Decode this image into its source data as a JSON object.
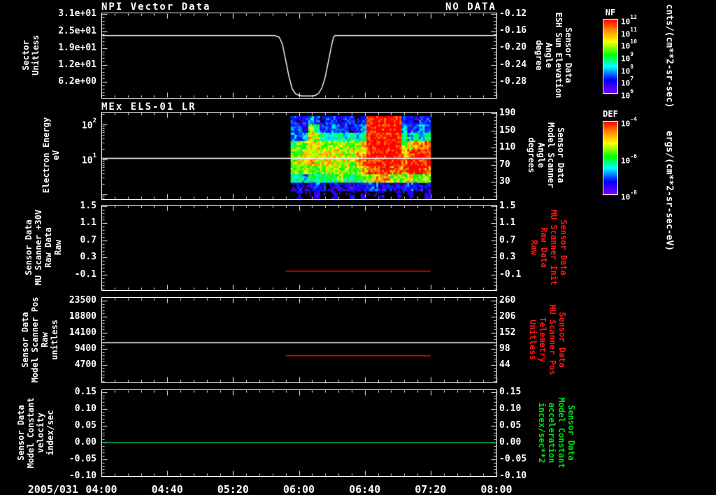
{
  "time_axis": {
    "date": "2005/031",
    "labels": [
      "04:00",
      "04:40",
      "05:20",
      "06:00",
      "06:40",
      "07:20",
      "08:00"
    ],
    "tick_minutes": [
      0,
      40,
      80,
      120,
      160,
      200,
      240
    ],
    "minor_step_min": 8,
    "t0_min": 0,
    "t1_min": 240
  },
  "colorbars": {
    "nf": {
      "label": "NF",
      "unit": "cnts/(cm**2-sr-sec)",
      "tick_exponents": [
        12,
        11,
        10,
        9,
        8,
        7,
        6
      ]
    },
    "def": {
      "label": "DEF",
      "unit": "ergs/(cm**2-sr-sec-eV)",
      "tick_exponents": [
        -4,
        -6,
        -8
      ]
    }
  },
  "chart_data": [
    {
      "panel": 1,
      "type": "line",
      "title": "NPI Vector Data",
      "status": "NO DATA",
      "left_axis": {
        "label": "Sector\nUnitless",
        "tick_labels": [
          "3.1e+01",
          "2.5e+01",
          "1.9e+01",
          "1.2e+01",
          "6.2e+00"
        ],
        "tick_values": [
          31.0,
          24.8,
          18.6,
          12.4,
          6.2
        ],
        "range": [
          0.3,
          31.6
        ]
      },
      "right_axis": {
        "label": "Sensor Data\nESH Sun Elevation\nAngle\ndegree",
        "tick_labels": [
          "-0.12",
          "-0.16",
          "-0.20",
          "-0.24",
          "-0.28"
        ],
        "tick_values": [
          -0.12,
          -0.16,
          -0.2,
          -0.24,
          -0.28
        ],
        "range": [
          -0.318,
          -0.1167
        ]
      },
      "series": [
        {
          "name": "sector",
          "color": "#ffffff",
          "points": [
            [
              0,
              23.2
            ],
            [
              105,
              23.2
            ],
            [
              108,
              22.6
            ],
            [
              110,
              20
            ],
            [
              112,
              14
            ],
            [
              114,
              8
            ],
            [
              116,
              3.5
            ],
            [
              118,
              1.8
            ],
            [
              120,
              1.2
            ],
            [
              122,
              1.0
            ],
            [
              128,
              1.0
            ],
            [
              130,
              1.2
            ],
            [
              132,
              2.0
            ],
            [
              134,
              4.0
            ],
            [
              136,
              8.0
            ],
            [
              138,
              14.0
            ],
            [
              140,
              20.0
            ],
            [
              141,
              22.5
            ],
            [
              142,
              23.2
            ],
            [
              240,
              23.2
            ]
          ]
        }
      ]
    },
    {
      "panel": 2,
      "type": "heatmap",
      "title": "MEx ELS-01 LR",
      "left_axis": {
        "label": "Electron Energy\neV",
        "log": true,
        "tick_exponents": [
          2,
          1
        ],
        "exp_range": [
          -0.14,
          2.36
        ]
      },
      "right_axis": {
        "label": "Sensor Data\nModel Scanner\nAngle\ndegrees",
        "tick_labels": [
          "190",
          "150",
          "110",
          "70",
          "30"
        ],
        "tick_values": [
          190,
          150,
          110,
          70,
          30
        ],
        "range": [
          -10.8,
          193.3
        ]
      },
      "overlay_line": {
        "name": "energy-marker",
        "color": "#ffffff",
        "energy_eV": 11
      },
      "heatmap": {
        "t_start_min": 115,
        "t_end_min": 200,
        "energy_rows": "high-to-low",
        "flux_scale_exp_range": [
          -8,
          -4
        ],
        "log10_flux_grid": [
          [
            -7.2,
            -7.7,
            -7.2,
            -6.6,
            -7.2,
            -7.7,
            -7.2,
            -7.2,
            -7.7,
            -7.2,
            -7.2,
            -7.7,
            -7.2,
            -4,
            -4,
            -4,
            -4,
            -4,
            -4,
            -7.2,
            -7.2,
            -7.7,
            -7.2,
            -7.2
          ],
          [
            -7.2,
            -7.2,
            -7.7,
            -5.4,
            -6,
            -7.2,
            -7.2,
            -6.6,
            -7.2,
            -7.2,
            -7.7,
            -7.2,
            -6.6,
            -4,
            -4,
            -4,
            -4,
            -4,
            -4,
            -6.6,
            -7.2,
            -7.2,
            -6.6,
            -7.2
          ],
          [
            -6.6,
            -7.2,
            -6.6,
            -5,
            -5.4,
            -6,
            -6.6,
            -6,
            -6,
            -6.6,
            -6,
            -6.6,
            -6,
            -4,
            -4,
            -4,
            -4,
            -4,
            -4,
            -6,
            -6.6,
            -6,
            -6.6,
            -6
          ],
          [
            -6,
            -5.4,
            -5.4,
            -5,
            -5,
            -5.4,
            -5.4,
            -5.4,
            -5.4,
            -5.4,
            -5.4,
            -5.4,
            -4.7,
            -4,
            -4,
            -4,
            -4,
            -4,
            -4,
            -5.4,
            -5,
            -4.7,
            -4.4,
            -4.4
          ],
          [
            -5.4,
            -5.4,
            -5,
            -5,
            -5,
            -5,
            -5,
            -5,
            -5,
            -5.4,
            -5,
            -4.7,
            -4.7,
            -4,
            -4,
            -4,
            -4,
            -4,
            -4,
            -4.7,
            -4.4,
            -4,
            -4,
            -4
          ],
          [
            -5.4,
            -5,
            -5,
            -4.7,
            -5,
            -5,
            -5,
            -5,
            -5,
            -5,
            -5.4,
            -4.7,
            -4.4,
            -4,
            -4,
            -4,
            -4,
            -4,
            -4,
            -4.4,
            -4,
            -4,
            -4,
            -4
          ],
          [
            -5.4,
            -5.4,
            -5.4,
            -5.4,
            -5.4,
            -5.4,
            -5,
            -5.4,
            -5.4,
            -5.4,
            -5.4,
            -5.4,
            -4.7,
            -4.4,
            -4.4,
            -4,
            -4,
            -4.4,
            -4.4,
            -4.4,
            -4,
            -4,
            -4,
            -4.4
          ],
          [
            -6,
            -6,
            -6.6,
            -6,
            -6,
            -6,
            -6,
            -6,
            -5.4,
            -6,
            -6,
            -6,
            -5.4,
            -5.4,
            -4.7,
            -4.7,
            -4.7,
            -5.4,
            -5.4,
            -5.4,
            -4.7,
            -5.4,
            -5.4,
            -5.4
          ],
          [
            -7.9,
            -7.5,
            -7.9,
            -7.5,
            -7.0,
            -7.5,
            -7.9,
            -7.5,
            -7.5,
            -7.9,
            -7.5,
            -7.5,
            -7.5,
            -7.0,
            -7.0,
            -7.5,
            -7.5,
            -7.5,
            -7.5,
            -7.5,
            -7.0,
            -7.5,
            -7.5,
            -7.5
          ],
          [
            null,
            -7.7,
            null,
            null,
            -7.7,
            null,
            null,
            -7.7,
            null,
            null,
            -7.7,
            null,
            -7.7,
            null,
            null,
            -7.7,
            null,
            null,
            -7.7,
            null,
            -7.7,
            null,
            null,
            -7.7
          ]
        ]
      }
    },
    {
      "panel": 3,
      "type": "line",
      "left_axis": {
        "label": "Sensor Data\nMU Scanner +30V\nRaw Data\nRaw",
        "tick_labels": [
          "1.5",
          "1.1",
          "0.7",
          "0.3",
          "-0.1"
        ],
        "tick_values": [
          1.5,
          1.1,
          0.7,
          0.3,
          -0.1
        ],
        "range": [
          -0.46,
          1.53
        ]
      },
      "right_axis": {
        "label": "Sensor Data\nMU Scanner Init\nRaw Data\nRaw",
        "label_color": "#ff1414",
        "tick_labels": [
          "1.5",
          "1.1",
          "0.7",
          "0.3",
          "-0.1"
        ],
        "tick_values": [
          1.5,
          1.1,
          0.7,
          0.3,
          -0.1
        ],
        "range": [
          -0.46,
          1.53
        ]
      },
      "series": [
        {
          "name": "mu-scanner-raw",
          "color": "#ff0000",
          "points": [
            [
              112,
              -0.02
            ],
            [
              200,
              -0.02
            ]
          ]
        }
      ]
    },
    {
      "panel": 4,
      "type": "line",
      "left_axis": {
        "label": "Sensor Data\nModel Scanner Pos\nRaw\nunitless",
        "tick_labels": [
          "23500",
          "18800",
          "14100",
          "9400",
          "4700"
        ],
        "tick_values": [
          23500,
          18800,
          14100,
          9400,
          4700
        ],
        "range": [
          -408,
          24522
        ]
      },
      "right_axis": {
        "label": "Sensor Data\nMU Scanner Pos\nTelemetry\nUnitless",
        "label_color": "#ff1414",
        "tick_labels": [
          "260",
          "206",
          "152",
          "98",
          "44"
        ],
        "tick_values": [
          260,
          206,
          152,
          98,
          44
        ],
        "range": [
          -14.7,
          271.7
        ]
      },
      "series": [
        {
          "name": "model-scanner-pos",
          "color": "#ffffff",
          "points": [
            [
              0,
              11200
            ],
            [
              240,
              11200
            ]
          ]
        },
        {
          "name": "mu-scanner-pos",
          "color": "#ff0000",
          "points": [
            [
              112,
              7400
            ],
            [
              200,
              7400
            ]
          ]
        }
      ]
    },
    {
      "panel": 5,
      "type": "line",
      "left_axis": {
        "label": "Sensor Data\nModel Constant\nvelocity\nindex/sec",
        "tick_labels": [
          "0.15",
          "0.10",
          "0.05",
          "0.00",
          "-0.05",
          "-0.10"
        ],
        "tick_values": [
          0.15,
          0.1,
          0.05,
          0.0,
          -0.05,
          -0.1
        ],
        "range": [
          -0.1,
          0.158
        ]
      },
      "right_axis": {
        "label": "Sensor Data\nModel Constant\nacceleration\nincex/sec**2",
        "label_color": "#00dd14",
        "tick_labels": [
          "0.15",
          "0.10",
          "0.05",
          "0.00",
          "-0.05",
          "-0.10"
        ],
        "tick_values": [
          0.15,
          0.1,
          0.05,
          0.0,
          -0.05,
          -0.1
        ],
        "range": [
          -0.1,
          0.158
        ]
      },
      "series": [
        {
          "name": "model-constant-velocity",
          "color": "#00bb55",
          "points": [
            [
              0,
              0.0
            ],
            [
              240,
              0.0
            ]
          ]
        }
      ]
    }
  ]
}
